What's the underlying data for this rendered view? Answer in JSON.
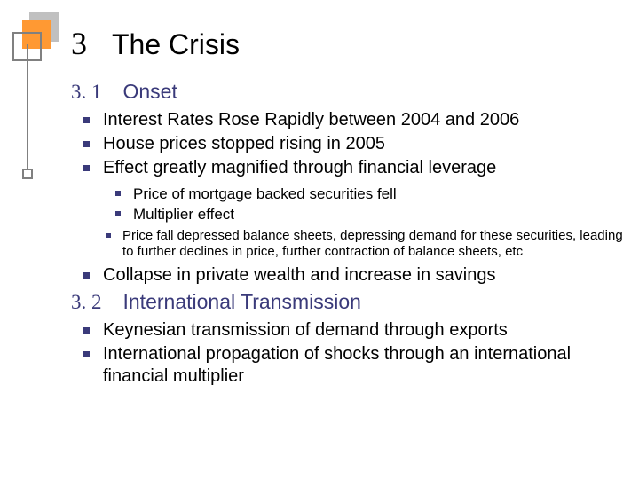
{
  "colors": {
    "orange": "#ff9933",
    "shadow": "#c0c0c0",
    "outline": "#808080",
    "navy": "#3a3a7a",
    "text": "#000000",
    "background": "#ffffff"
  },
  "title": {
    "number": "3",
    "text": "The Crisis"
  },
  "sections": [
    {
      "number": "3. 1",
      "title": "Onset",
      "bullets_l1_a": [
        "Interest Rates Rose Rapidly between 2004 and 2006",
        "House prices stopped rising in 2005",
        "Effect greatly magnified through financial leverage"
      ],
      "bullets_l2": [
        "Price of mortgage backed securities fell",
        "Multiplier effect"
      ],
      "bullets_l3": [
        "Price fall depressed balance sheets, depressing demand for these securities, leading to further declines in price, further contraction of balance sheets, etc"
      ],
      "bullets_l1_b": [
        "Collapse in private wealth and increase in savings"
      ]
    },
    {
      "number": "3. 2",
      "title": "International Transmission",
      "bullets_l1": [
        "Keynesian transmission of demand through exports",
        "International propagation of shocks through an international financial multiplier"
      ]
    }
  ]
}
